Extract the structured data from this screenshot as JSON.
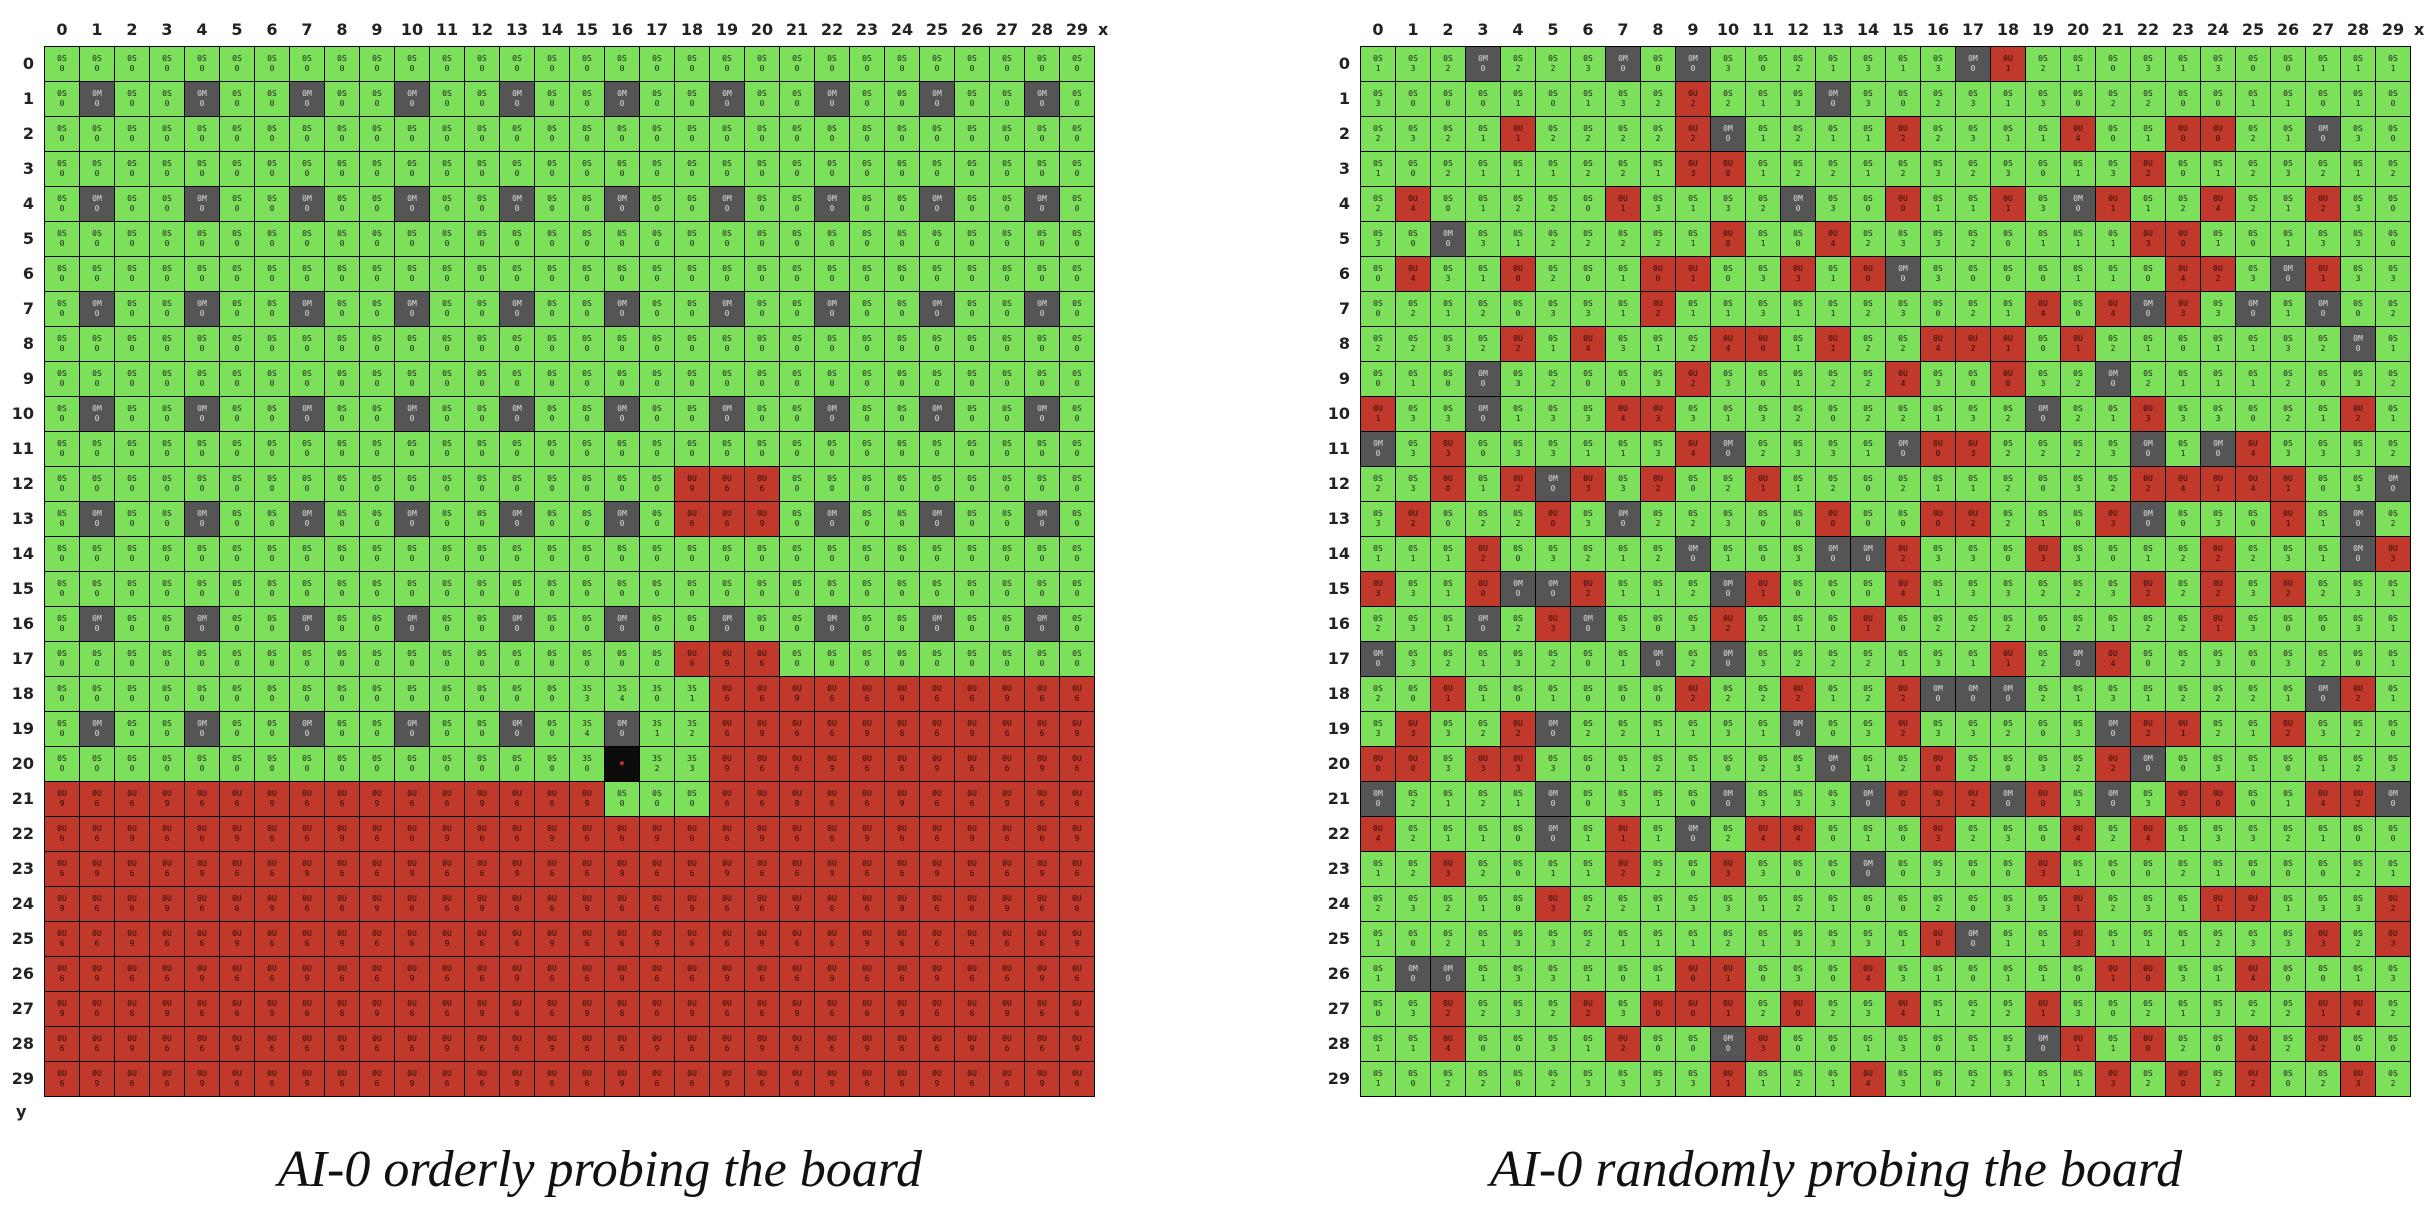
{
  "axes": {
    "x_label": "x",
    "y_label": "y",
    "size": 30
  },
  "left": {
    "caption": "AI-0 orderly probing the board",
    "cell_strings": {
      "default_safe": "0S",
      "default_unknown": "0U",
      "mine": "0M"
    }
  },
  "right": {
    "caption": "AI-0 randomly probing the board"
  },
  "colors": {
    "safe": "#7ce05a",
    "unknown": "#c0392b",
    "mine": "#555555",
    "current": "#0c0c0c",
    "grid_line": "#000000"
  }
}
